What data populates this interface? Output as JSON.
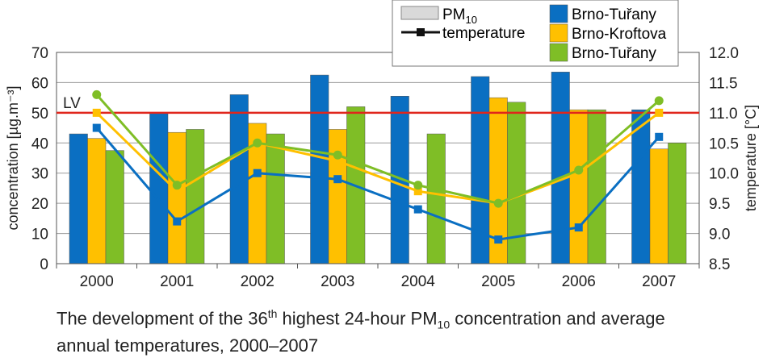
{
  "chart_data": {
    "type": "bar",
    "categories": [
      "2000",
      "2001",
      "2002",
      "2003",
      "2004",
      "2005",
      "2006",
      "2007"
    ],
    "series": [
      {
        "name": "Brno-Tuřany",
        "kind": "bar",
        "color": "#0a6fc2",
        "values": [
          43,
          50,
          56,
          62.5,
          55.5,
          62,
          63.5,
          51
        ]
      },
      {
        "name": "Brno-Kroftova",
        "kind": "bar",
        "color": "#ffc000",
        "values": [
          41.5,
          43.5,
          46.5,
          44.5,
          null,
          55,
          51,
          38
        ]
      },
      {
        "name": "Brno-Tuřany",
        "kind": "bar",
        "color": "#7fbe26",
        "values": [
          37.5,
          44.5,
          43,
          52,
          43,
          53.5,
          51,
          40
        ]
      },
      {
        "name": "temperature",
        "kind": "line",
        "color": "#0a6fc2",
        "marker": "square",
        "axis": "right",
        "values": [
          10.75,
          9.2,
          10.0,
          9.9,
          9.4,
          8.9,
          9.1,
          10.6
        ]
      },
      {
        "name": "temperature",
        "kind": "line",
        "color": "#ffc000",
        "marker": "square",
        "axis": "right",
        "values": [
          11.0,
          9.7,
          10.5,
          10.2,
          9.7,
          9.5,
          10.0,
          11.0
        ]
      },
      {
        "name": "temperature",
        "kind": "line",
        "color": "#7fbe26",
        "marker": "circle",
        "axis": "right",
        "values": [
          11.3,
          9.8,
          10.5,
          10.3,
          9.8,
          9.5,
          10.05,
          11.2
        ]
      }
    ],
    "limit_line": {
      "label": "LV",
      "value": 50,
      "color": "#e0261c"
    },
    "ylabel": "concentration  [µg.m⁻³]",
    "y2label": "temperature [°C]",
    "ylim": [
      0,
      70
    ],
    "yticks": [
      0,
      10,
      20,
      30,
      40,
      50,
      60,
      70
    ],
    "y2lim": [
      8.5,
      12.0
    ],
    "y2ticks": [
      "8.5",
      "9.0",
      "9.5",
      "10.0",
      "10.5",
      "11.0",
      "11.5",
      "12.0"
    ],
    "grid": true,
    "legend": {
      "placement": "top-right",
      "pm_label": "PM",
      "pm_sub": "10",
      "temp_label": "temperature",
      "stations": [
        "Brno-Tuřany",
        "Brno-Kroftova",
        "Brno-Tuřany"
      ]
    }
  },
  "caption": {
    "part1": "The development of the 36",
    "sup": "th",
    "part2": " highest 24-hour PM",
    "sub": "10",
    "part3": " concentration and average",
    "line2": "annual temperatures, 2000–2007"
  }
}
